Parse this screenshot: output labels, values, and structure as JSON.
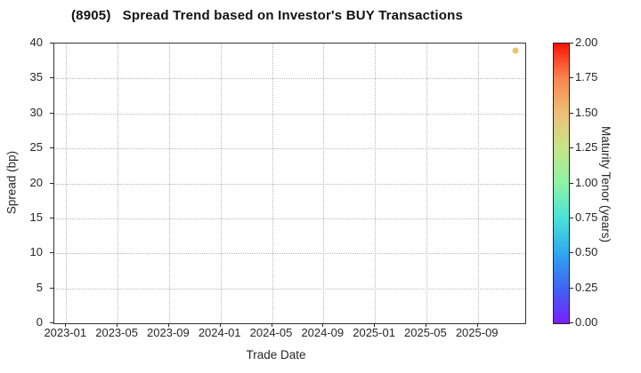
{
  "chart_data": {
    "type": "scatter",
    "title": "(8905)   Spread Trend based on Investor's BUY Transactions",
    "xlabel": "Trade Date",
    "ylabel": "Spread (bp)",
    "x_tick_labels": [
      "2023-01",
      "2023-05",
      "2023-09",
      "2024-01",
      "2024-05",
      "2024-09",
      "2025-01",
      "2025-05",
      "2025-09"
    ],
    "x_range": [
      "2022-12",
      "2025-12"
    ],
    "y_ticks": [
      0,
      5,
      10,
      15,
      20,
      25,
      30,
      35,
      40
    ],
    "ylim": [
      0,
      40
    ],
    "grid": true,
    "grid_style": "dotted",
    "points": [
      {
        "date": "2025-11-28",
        "spread_bp": 39,
        "maturity_tenor_years": 1.5,
        "color": "#e8c56c"
      }
    ],
    "colorbar": {
      "label": "Maturity Tenor (years)",
      "min": 0,
      "max": 2,
      "tick_labels": [
        "0.00",
        "0.25",
        "0.50",
        "0.75",
        "1.00",
        "1.25",
        "1.50",
        "1.75",
        "2.00"
      ],
      "colormap": "rainbow",
      "gradient_stops": [
        {
          "value": 0.0,
          "color": "#7a1ffc"
        },
        {
          "value": 0.25,
          "color": "#3f64f4"
        },
        {
          "value": 0.5,
          "color": "#30a6ef"
        },
        {
          "value": 0.75,
          "color": "#49e2d8"
        },
        {
          "value": 1.0,
          "color": "#8df3a5"
        },
        {
          "value": 1.25,
          "color": "#c6e589"
        },
        {
          "value": 1.5,
          "color": "#eec077"
        },
        {
          "value": 1.75,
          "color": "#f8864f"
        },
        {
          "value": 2.0,
          "color": "#fb1508"
        }
      ]
    },
    "colors": {
      "text": "#262626",
      "grid": "#b8b8b8",
      "spine": "#333333",
      "background": "#ffffff"
    }
  }
}
